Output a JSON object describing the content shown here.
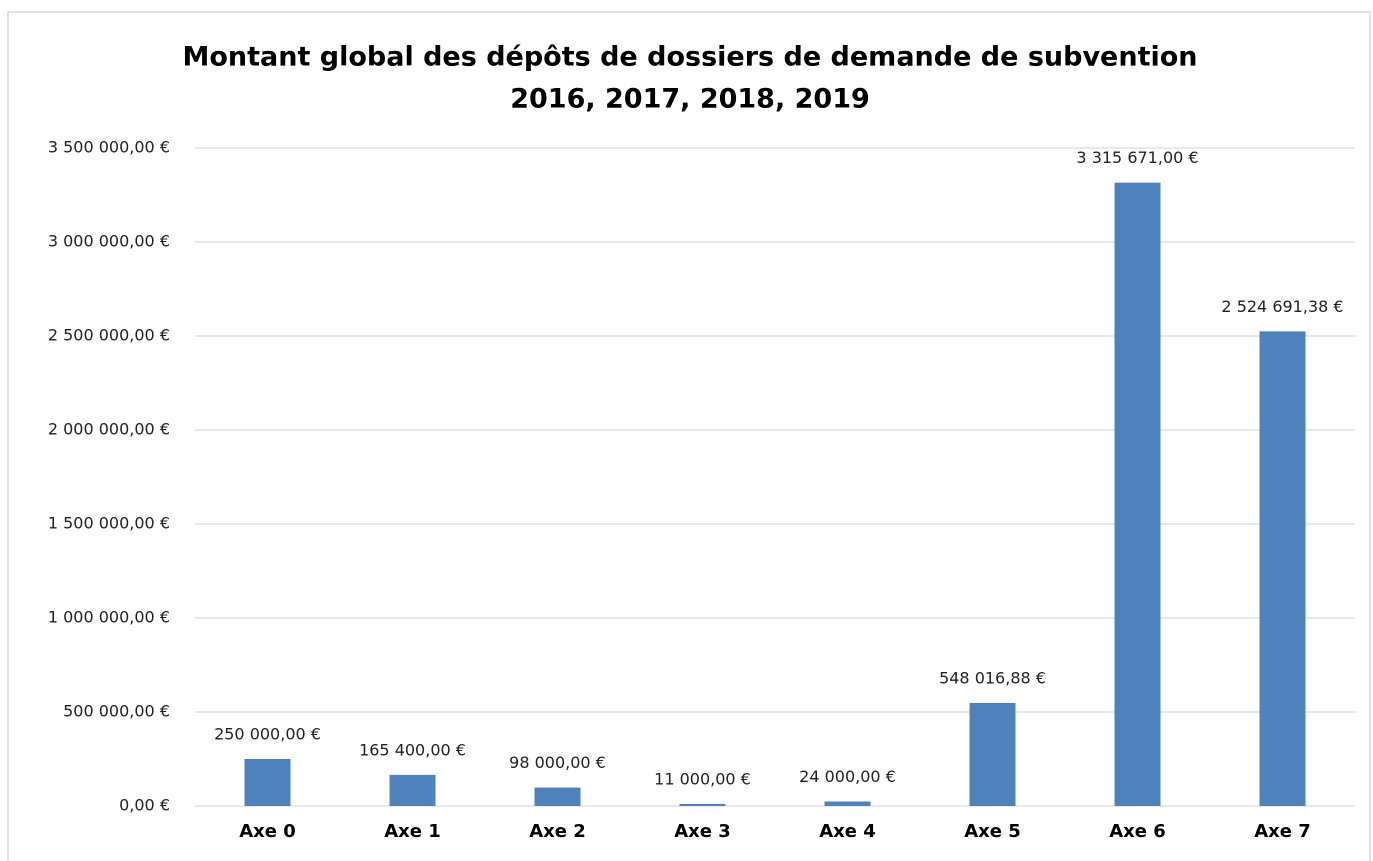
{
  "chart_data": {
    "type": "bar",
    "title": "Montant global des dépôts de dossiers de demande de subvention",
    "subtitle": "2016, 2017, 2018, 2019",
    "categories": [
      "Axe 0",
      "Axe 1",
      "Axe 2",
      "Axe 3",
      "Axe 4",
      "Axe 5",
      "Axe 6",
      "Axe 7"
    ],
    "values": [
      250000,
      165400,
      98000,
      11000,
      24000,
      548016.88,
      3315671,
      2524691.38
    ],
    "value_labels": [
      "250 000,00 €",
      "165 400,00 €",
      "98 000,00 €",
      "11 000,00 €",
      "24 000,00 €",
      "548 016,88 €",
      "3 315 671,00 €",
      "2 524 691,38 €"
    ],
    "color": "#4f81bd",
    "ylim": [
      0,
      3500000
    ],
    "yticks": [
      {
        "value": 0,
        "label": "0,00 €"
      },
      {
        "value": 500000,
        "label": "500 000,00 €"
      },
      {
        "value": 1000000,
        "label": "1 000 000,00 €"
      },
      {
        "value": 1500000,
        "label": "1 500 000,00 €"
      },
      {
        "value": 2000000,
        "label": "2 000 000,00 €"
      },
      {
        "value": 2500000,
        "label": "2 500 000,00 €"
      },
      {
        "value": 3000000,
        "label": "3 000 000,00 €"
      },
      {
        "value": 3500000,
        "label": "3 500 000,00 €"
      }
    ],
    "grid": true
  }
}
